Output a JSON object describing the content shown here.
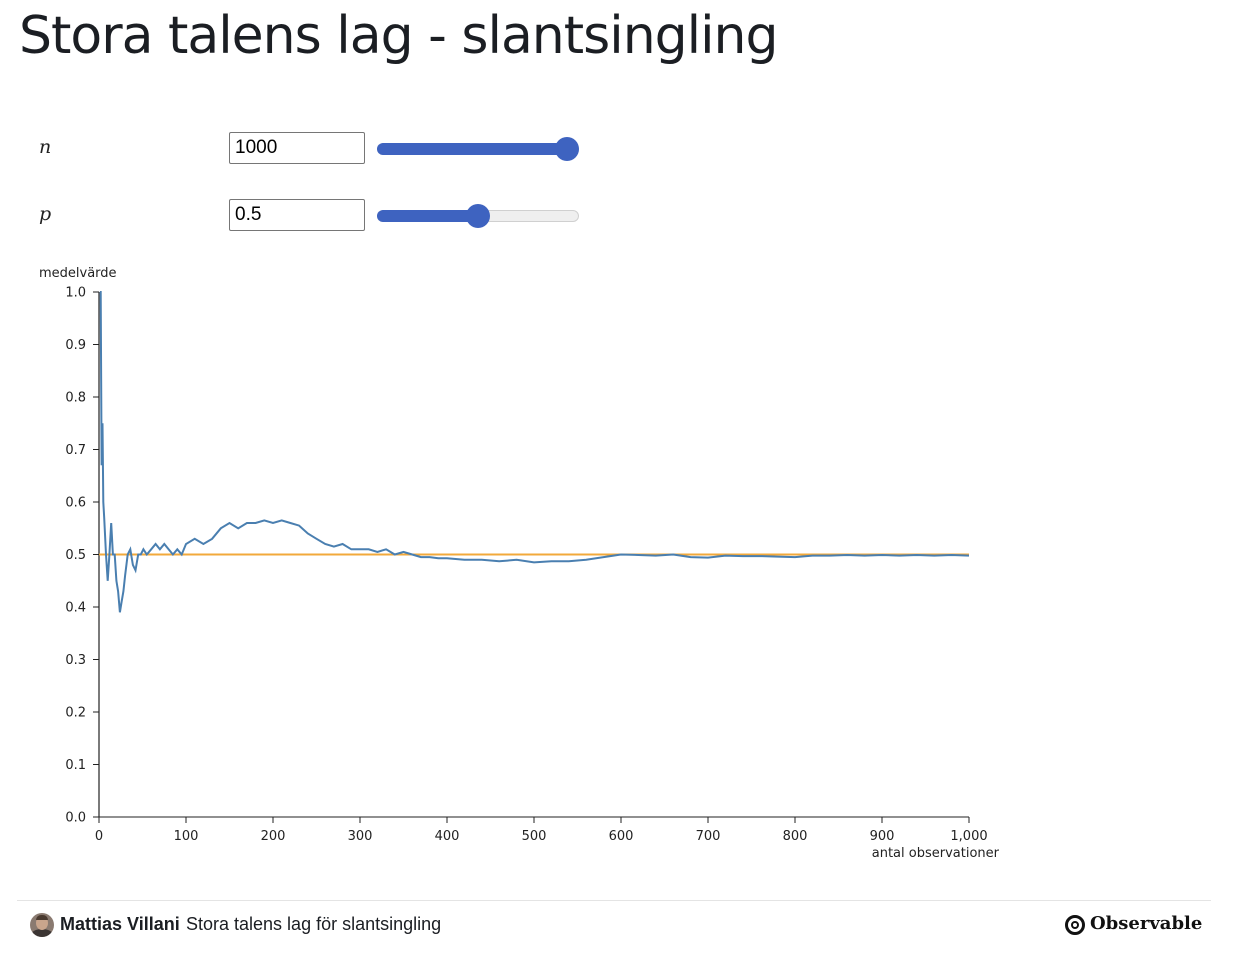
{
  "page": {
    "title": "Stora talens lag - slantsingling"
  },
  "controls": {
    "n": {
      "label": "n",
      "value": "1000",
      "min": 1,
      "max": 1000,
      "current": 1000
    },
    "p": {
      "label": "p",
      "value": "0.5",
      "min": 0,
      "max": 1,
      "current": 0.5
    }
  },
  "chart_data": {
    "type": "line",
    "ylabel": "medelvärde",
    "xlabel": "antal observationer",
    "xlim": [
      0,
      1000
    ],
    "ylim": [
      0,
      1
    ],
    "x_ticks": [
      "0",
      "100",
      "200",
      "300",
      "400",
      "500",
      "600",
      "700",
      "800",
      "900",
      "1,000"
    ],
    "x_tick_values": [
      0,
      100,
      200,
      300,
      400,
      500,
      600,
      700,
      800,
      900,
      1000
    ],
    "y_ticks": [
      "0.0",
      "0.1",
      "0.2",
      "0.3",
      "0.4",
      "0.5",
      "0.6",
      "0.7",
      "0.8",
      "0.9",
      "1.0"
    ],
    "y_tick_values": [
      0,
      0.1,
      0.2,
      0.3,
      0.4,
      0.5,
      0.6,
      0.7,
      0.8,
      0.9,
      1.0
    ],
    "grid": false,
    "reference_line": {
      "y": 0.5,
      "color": "#f2a93b"
    },
    "series": [
      {
        "color": "#4a7fb0",
        "x": [
          1,
          2,
          3,
          4,
          5,
          6,
          8,
          10,
          12,
          14,
          16,
          18,
          20,
          22,
          24,
          26,
          28,
          30,
          33,
          36,
          39,
          42,
          45,
          48,
          51,
          55,
          60,
          65,
          70,
          75,
          80,
          85,
          90,
          95,
          100,
          110,
          120,
          130,
          140,
          150,
          160,
          170,
          180,
          190,
          200,
          210,
          220,
          230,
          240,
          250,
          260,
          270,
          280,
          290,
          300,
          310,
          320,
          330,
          340,
          350,
          360,
          370,
          380,
          390,
          400,
          420,
          440,
          460,
          480,
          500,
          520,
          540,
          560,
          580,
          600,
          620,
          640,
          660,
          680,
          700,
          720,
          740,
          760,
          780,
          800,
          820,
          840,
          860,
          880,
          900,
          920,
          940,
          960,
          980,
          1000
        ],
        "y": [
          1.0,
          1.0,
          0.67,
          0.75,
          0.6,
          0.57,
          0.5,
          0.45,
          0.5,
          0.56,
          0.5,
          0.5,
          0.45,
          0.43,
          0.39,
          0.41,
          0.43,
          0.46,
          0.5,
          0.51,
          0.48,
          0.47,
          0.5,
          0.5,
          0.51,
          0.5,
          0.51,
          0.52,
          0.51,
          0.52,
          0.51,
          0.5,
          0.51,
          0.5,
          0.52,
          0.53,
          0.52,
          0.53,
          0.55,
          0.56,
          0.55,
          0.56,
          0.56,
          0.565,
          0.56,
          0.565,
          0.56,
          0.555,
          0.54,
          0.53,
          0.52,
          0.515,
          0.52,
          0.51,
          0.51,
          0.51,
          0.505,
          0.51,
          0.5,
          0.505,
          0.5,
          0.495,
          0.495,
          0.493,
          0.493,
          0.49,
          0.49,
          0.487,
          0.49,
          0.485,
          0.487,
          0.487,
          0.49,
          0.495,
          0.5,
          0.499,
          0.498,
          0.5,
          0.495,
          0.494,
          0.498,
          0.497,
          0.497,
          0.496,
          0.495,
          0.498,
          0.498,
          0.499,
          0.498,
          0.499,
          0.498,
          0.499,
          0.498,
          0.499,
          0.498
        ]
      }
    ]
  },
  "footer": {
    "author": "Mattias Villani",
    "notebook_title": "Stora talens lag för slantsingling",
    "brand": "Observable",
    "brand_icon": "observable-logo-icon",
    "avatar_icon": "avatar-icon"
  }
}
